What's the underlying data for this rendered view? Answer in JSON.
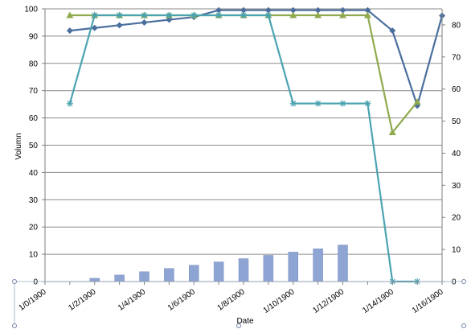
{
  "chart_data": {
    "type": "bar",
    "title": "",
    "xlabel": "Date",
    "ylabel": "Volumn",
    "y2label": "",
    "x": [
      "1/0/1900",
      "1/1/1900",
      "1/2/1900",
      "1/3/1900",
      "1/4/1900",
      "1/5/1900",
      "1/6/1900",
      "1/7/1900",
      "1/8/1900",
      "1/9/1900",
      "1/10/1900",
      "1/11/1900",
      "1/12/1900",
      "1/13/1900",
      "1/14/1900",
      "1/15/1900",
      "1/16/1900"
    ],
    "x_tick_labels": [
      "1/0/1900",
      "1/2/1900",
      "1/4/1900",
      "1/6/1900",
      "1/8/1900",
      "1/10/1900",
      "1/12/1900",
      "1/14/1900",
      "1/16/1900"
    ],
    "ylim": [
      0,
      100
    ],
    "y_ticks": [
      0,
      10,
      20,
      30,
      40,
      50,
      60,
      70,
      80,
      90,
      100
    ],
    "y2lim": [
      0,
      85
    ],
    "y2_ticks": [
      0,
      10,
      20,
      30,
      40,
      50,
      60,
      70,
      80
    ],
    "grid": true,
    "legend": "none",
    "series": [
      {
        "type": "bar",
        "axis": "primary",
        "color": "#8ea4d2",
        "x": [
          "1/2/1900",
          "1/3/1900",
          "1/4/1900",
          "1/5/1900",
          "1/6/1900",
          "1/7/1900",
          "1/8/1900",
          "1/9/1900",
          "1/10/1900",
          "1/11/1900",
          "1/12/1900",
          "1/13/1900"
        ],
        "values": [
          1.2,
          2.4,
          3.6,
          4.8,
          6.0,
          7.2,
          8.4,
          9.6,
          10.8,
          12.0,
          13.4,
          0
        ]
      },
      {
        "type": "line",
        "axis": "primary",
        "marker": "diamond",
        "color": "#4a6f9f",
        "x": [
          "1/1/1900",
          "1/2/1900",
          "1/3/1900",
          "1/4/1900",
          "1/5/1900",
          "1/6/1900",
          "1/7/1900",
          "1/8/1900",
          "1/9/1900",
          "1/10/1900",
          "1/11/1900",
          "1/12/1900",
          "1/13/1900",
          "1/14/1900",
          "1/15/1900",
          "1/16/1900"
        ],
        "values": [
          92,
          93,
          94,
          95,
          96,
          97,
          99.5,
          99.5,
          99.5,
          99.5,
          99.5,
          99.5,
          99.5,
          92,
          64.5,
          97.5
        ]
      },
      {
        "type": "line",
        "axis": "secondary",
        "marker": "triangle",
        "color": "#8faa4e",
        "x": [
          "1/1/1900",
          "1/2/1900",
          "1/3/1900",
          "1/4/1900",
          "1/5/1900",
          "1/6/1900",
          "1/7/1900",
          "1/8/1900",
          "1/9/1900",
          "1/10/1900",
          "1/11/1900",
          "1/12/1900",
          "1/13/1900",
          "1/14/1900",
          "1/15/1900"
        ],
        "values": [
          83,
          83,
          83,
          83,
          83,
          83,
          83,
          83,
          83,
          83,
          83,
          83,
          83,
          46.5,
          56
        ]
      },
      {
        "type": "line",
        "axis": "secondary",
        "marker": "star",
        "color": "#4ba3b1",
        "x": [
          "1/1/1900",
          "1/2/1900",
          "1/3/1900",
          "1/4/1900",
          "1/5/1900",
          "1/6/1900",
          "1/7/1900",
          "1/8/1900",
          "1/9/1900",
          "1/10/1900",
          "1/11/1900",
          "1/12/1900",
          "1/13/1900",
          "1/14/1900",
          "1/15/1900"
        ],
        "values": [
          55.5,
          83,
          83,
          83,
          83,
          83,
          83,
          83,
          83,
          55.5,
          55.5,
          55.5,
          55.5,
          0,
          0
        ]
      }
    ]
  }
}
